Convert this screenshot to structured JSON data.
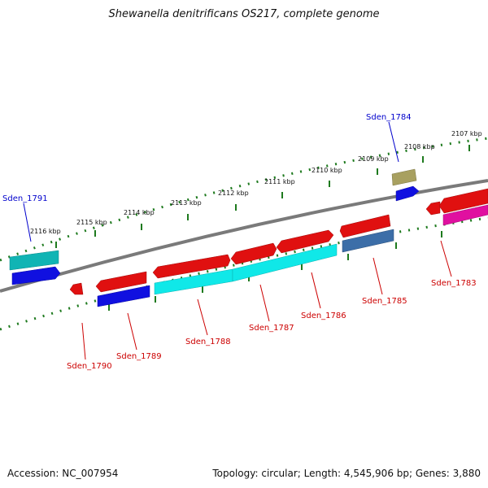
{
  "title": "Shewanella denitrificans OS217, complete genome",
  "footer": {
    "accession": "Accession: NC_007954",
    "summary": "Topology: circular; Length: 4,545,906 bp; Genes: 3,880"
  },
  "kbp_labels": [
    {
      "kbp": 2116,
      "text": "2116 kbp"
    },
    {
      "kbp": 2115,
      "text": "2115 kbp"
    },
    {
      "kbp": 2114,
      "text": "2114 kbp"
    },
    {
      "kbp": 2113,
      "text": "2113 kbp"
    },
    {
      "kbp": 2112,
      "text": "2112 kbp"
    },
    {
      "kbp": 2111,
      "text": "2111 kbp"
    },
    {
      "kbp": 2110,
      "text": "2110 kbp"
    },
    {
      "kbp": 2109,
      "text": "2109 kbp"
    },
    {
      "kbp": 2108,
      "text": "2108 kbp"
    },
    {
      "kbp": 2107,
      "text": "2107 kbp"
    }
  ],
  "genes": [
    {
      "id": "Sden_1791",
      "label": "Sden_1791",
      "label_color": "#0000cc"
    },
    {
      "id": "Sden_1784",
      "label": "Sden_1784",
      "label_color": "#0000cc"
    },
    {
      "id": "Sden_1790",
      "label": "Sden_1790",
      "label_color": "#cc0000"
    },
    {
      "id": "Sden_1789",
      "label": "Sden_1789",
      "label_color": "#cc0000"
    },
    {
      "id": "Sden_1788",
      "label": "Sden_1788",
      "label_color": "#cc0000"
    },
    {
      "id": "Sden_1787",
      "label": "Sden_1787",
      "label_color": "#cc0000"
    },
    {
      "id": "Sden_1786",
      "label": "Sden_1786",
      "label_color": "#cc0000"
    },
    {
      "id": "Sden_1785",
      "label": "Sden_1785",
      "label_color": "#cc0000"
    },
    {
      "id": "Sden_1783",
      "label": "Sden_1783",
      "label_color": "#cc0000"
    }
  ],
  "colors": {
    "backbone": "#7a7a7a",
    "tick_dot": "#1e7a1e",
    "red": "#e01010",
    "blue": "#1010e0",
    "cyan": "#10e8e8",
    "teal": "#10b4b4",
    "steelblue": "#3c6ea8",
    "olive": "#a8a060",
    "magenta": "#e010a0"
  }
}
